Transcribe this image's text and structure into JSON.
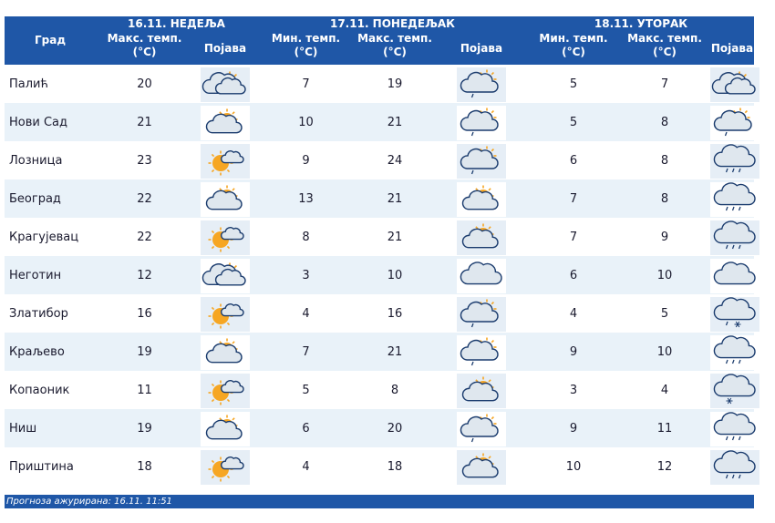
{
  "header": {
    "day1": {
      "date": "16.11. НЕДЕЉА",
      "max": "Макс. темп.",
      "unit": "(°C)",
      "pojava": "Појава"
    },
    "day2": {
      "date": "17.11. ПОНЕДЕЉАК",
      "min": "Мин. темп.",
      "max": "Макс. темп.",
      "unit": "(°C)",
      "pojava": "Појава"
    },
    "day3": {
      "date": "18.11. УТОРАК",
      "min": "Мин. темп.",
      "max": "Макс. темп.",
      "unit": "(°C)",
      "pojava": "Појава"
    },
    "city": "Град"
  },
  "rows": [
    {
      "city": "Палић",
      "d1_max": "20",
      "d1_icon": "cloudy-sun",
      "d2_min": "7",
      "d2_max": "19",
      "d2_icon": "cloud-sun-light-rain",
      "d3_min": "5",
      "d3_max": "7",
      "d3_icon": "cloudy-sun"
    },
    {
      "city": "Нови Сад",
      "d1_max": "21",
      "d1_icon": "partly-cloudy",
      "d2_min": "10",
      "d2_max": "21",
      "d2_icon": "cloud-sun-light-rain",
      "d3_min": "5",
      "d3_max": "8",
      "d3_icon": "cloud-sun-light-rain"
    },
    {
      "city": "Лозница",
      "d1_max": "23",
      "d1_icon": "sunny-cloud",
      "d2_min": "9",
      "d2_max": "24",
      "d2_icon": "cloud-sun-light-rain",
      "d3_min": "6",
      "d3_max": "8",
      "d3_icon": "rain"
    },
    {
      "city": "Београд",
      "d1_max": "22",
      "d1_icon": "partly-cloudy",
      "d2_min": "13",
      "d2_max": "21",
      "d2_icon": "partly-cloudy",
      "d3_min": "7",
      "d3_max": "8",
      "d3_icon": "rain"
    },
    {
      "city": "Крагујевац",
      "d1_max": "22",
      "d1_icon": "sunny-cloud",
      "d2_min": "8",
      "d2_max": "21",
      "d2_icon": "partly-cloudy",
      "d3_min": "7",
      "d3_max": "9",
      "d3_icon": "rain"
    },
    {
      "city": "Неготин",
      "d1_max": "12",
      "d1_icon": "cloudy-sun",
      "d2_min": "3",
      "d2_max": "10",
      "d2_icon": "cloud",
      "d3_min": "6",
      "d3_max": "10",
      "d3_icon": "cloud"
    },
    {
      "city": "Златибор",
      "d1_max": "16",
      "d1_icon": "sunny-cloud",
      "d2_min": "4",
      "d2_max": "16",
      "d2_icon": "cloud-sun-light-rain",
      "d3_min": "4",
      "d3_max": "5",
      "d3_icon": "rain-snow"
    },
    {
      "city": "Краљево",
      "d1_max": "19",
      "d1_icon": "partly-cloudy",
      "d2_min": "7",
      "d2_max": "21",
      "d2_icon": "cloud-sun-light-rain",
      "d3_min": "9",
      "d3_max": "10",
      "d3_icon": "rain"
    },
    {
      "city": "Копаоник",
      "d1_max": "11",
      "d1_icon": "sunny-cloud",
      "d2_min": "5",
      "d2_max": "8",
      "d2_icon": "partly-cloudy",
      "d3_min": "3",
      "d3_max": "4",
      "d3_icon": "snow"
    },
    {
      "city": "Ниш",
      "d1_max": "19",
      "d1_icon": "partly-cloudy",
      "d2_min": "6",
      "d2_max": "20",
      "d2_icon": "cloud-sun-light-rain",
      "d3_min": "9",
      "d3_max": "11",
      "d3_icon": "rain"
    },
    {
      "city": "Приштина",
      "d1_max": "18",
      "d1_icon": "sunny-cloud",
      "d2_min": "4",
      "d2_max": "18",
      "d2_icon": "partly-cloudy",
      "d3_min": "10",
      "d3_max": "12",
      "d3_icon": "rain"
    }
  ],
  "footer": {
    "text": "Прогноза ажурирана:  16.11. 11:51"
  },
  "colors": {
    "header_bg": "#1f57a7",
    "row_alt": "#e9f2f9",
    "icon_box": "#e6eef6",
    "cloud": "#dfe7ee",
    "cloud_stroke": "#1b3c6e",
    "sun": "#f6a623"
  }
}
